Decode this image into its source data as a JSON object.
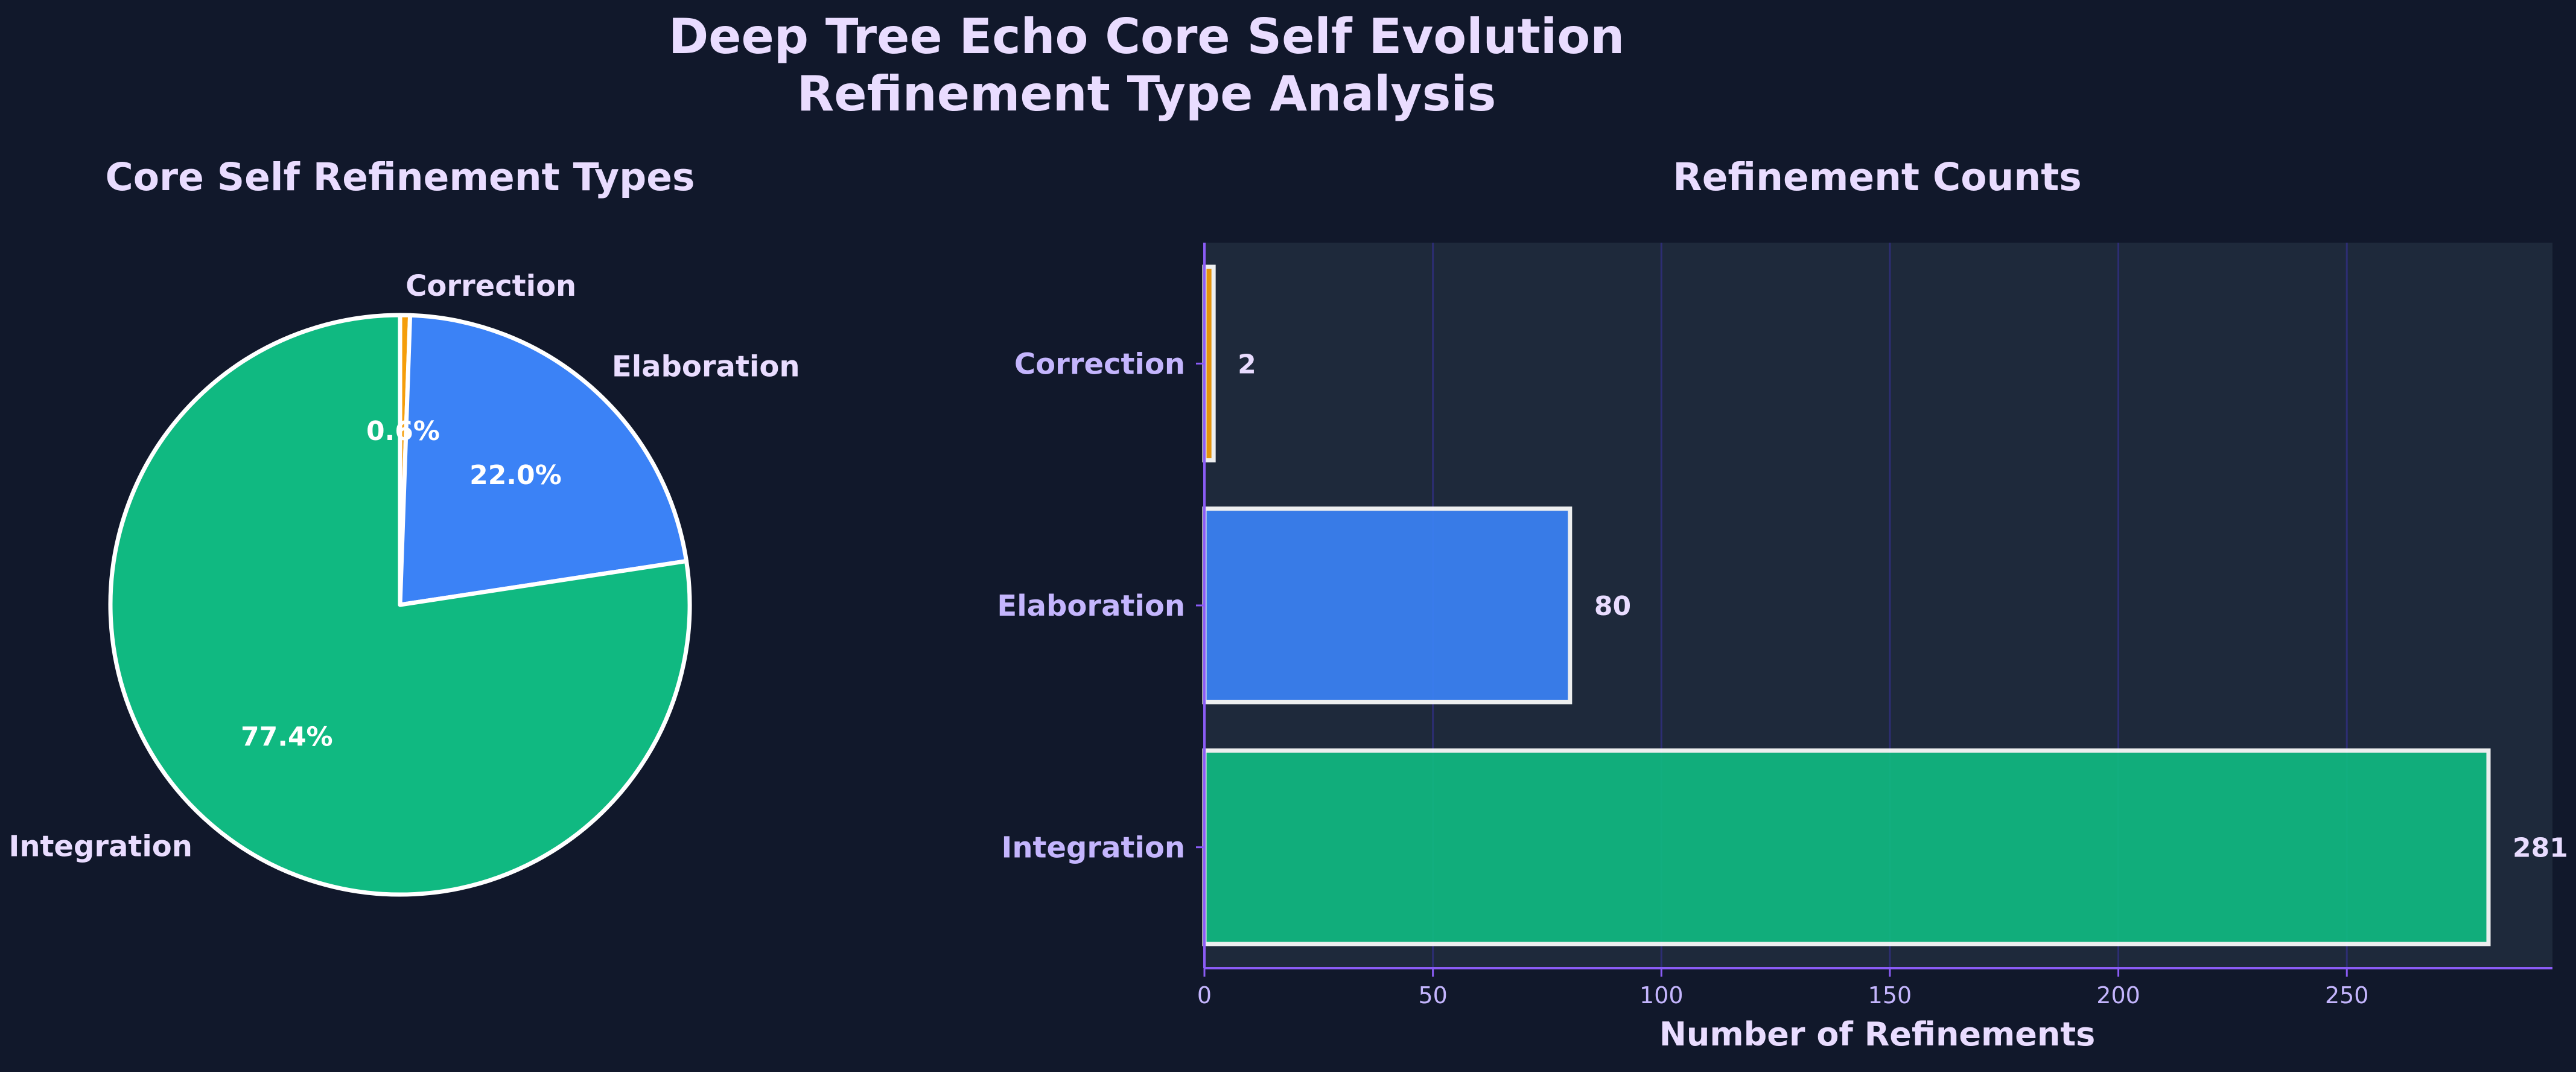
{
  "figure": {
    "title_line1": "Deep Tree Echo Core Self Evolution",
    "title_line2": "Refinement Type Analysis"
  },
  "colors": {
    "background": "#11182b",
    "plot_background": "#1e293b",
    "grid": "#312e81",
    "axis": "#8b5cf6",
    "text": "#e9dcff",
    "tick_text": "#c4b5fd",
    "integration": "#10b981",
    "elaboration": "#3b82f6",
    "correction": "#f59e0b",
    "edge": "#ffffff"
  },
  "chart_data": [
    {
      "type": "pie",
      "title": "Core Self Refinement Types",
      "start_angle_deg": 90,
      "direction": "clockwise",
      "slices": [
        {
          "label": "Correction",
          "value": 2,
          "percent_label": "0.6%",
          "color": "#f59e0b"
        },
        {
          "label": "Elaboration",
          "value": 80,
          "percent_label": "22.0%",
          "color": "#3b82f6"
        },
        {
          "label": "Integration",
          "value": 281,
          "percent_label": "77.4%",
          "color": "#10b981"
        }
      ]
    },
    {
      "type": "bar",
      "orientation": "horizontal",
      "title": "Refinement Counts",
      "categories": [
        "Correction",
        "Elaboration",
        "Integration"
      ],
      "values": [
        2,
        80,
        281
      ],
      "colors": [
        "#f59e0b",
        "#3b82f6",
        "#10b981"
      ],
      "value_labels": [
        "2",
        "80",
        "281"
      ],
      "xlabel": "Number of Refinements",
      "ylabel": "",
      "xlim": [
        0,
        295
      ],
      "xticks": [
        0,
        50,
        100,
        150,
        200,
        250
      ],
      "xtick_labels": [
        "0",
        "50",
        "100",
        "150",
        "200",
        "250"
      ],
      "grid": "vertical"
    }
  ]
}
